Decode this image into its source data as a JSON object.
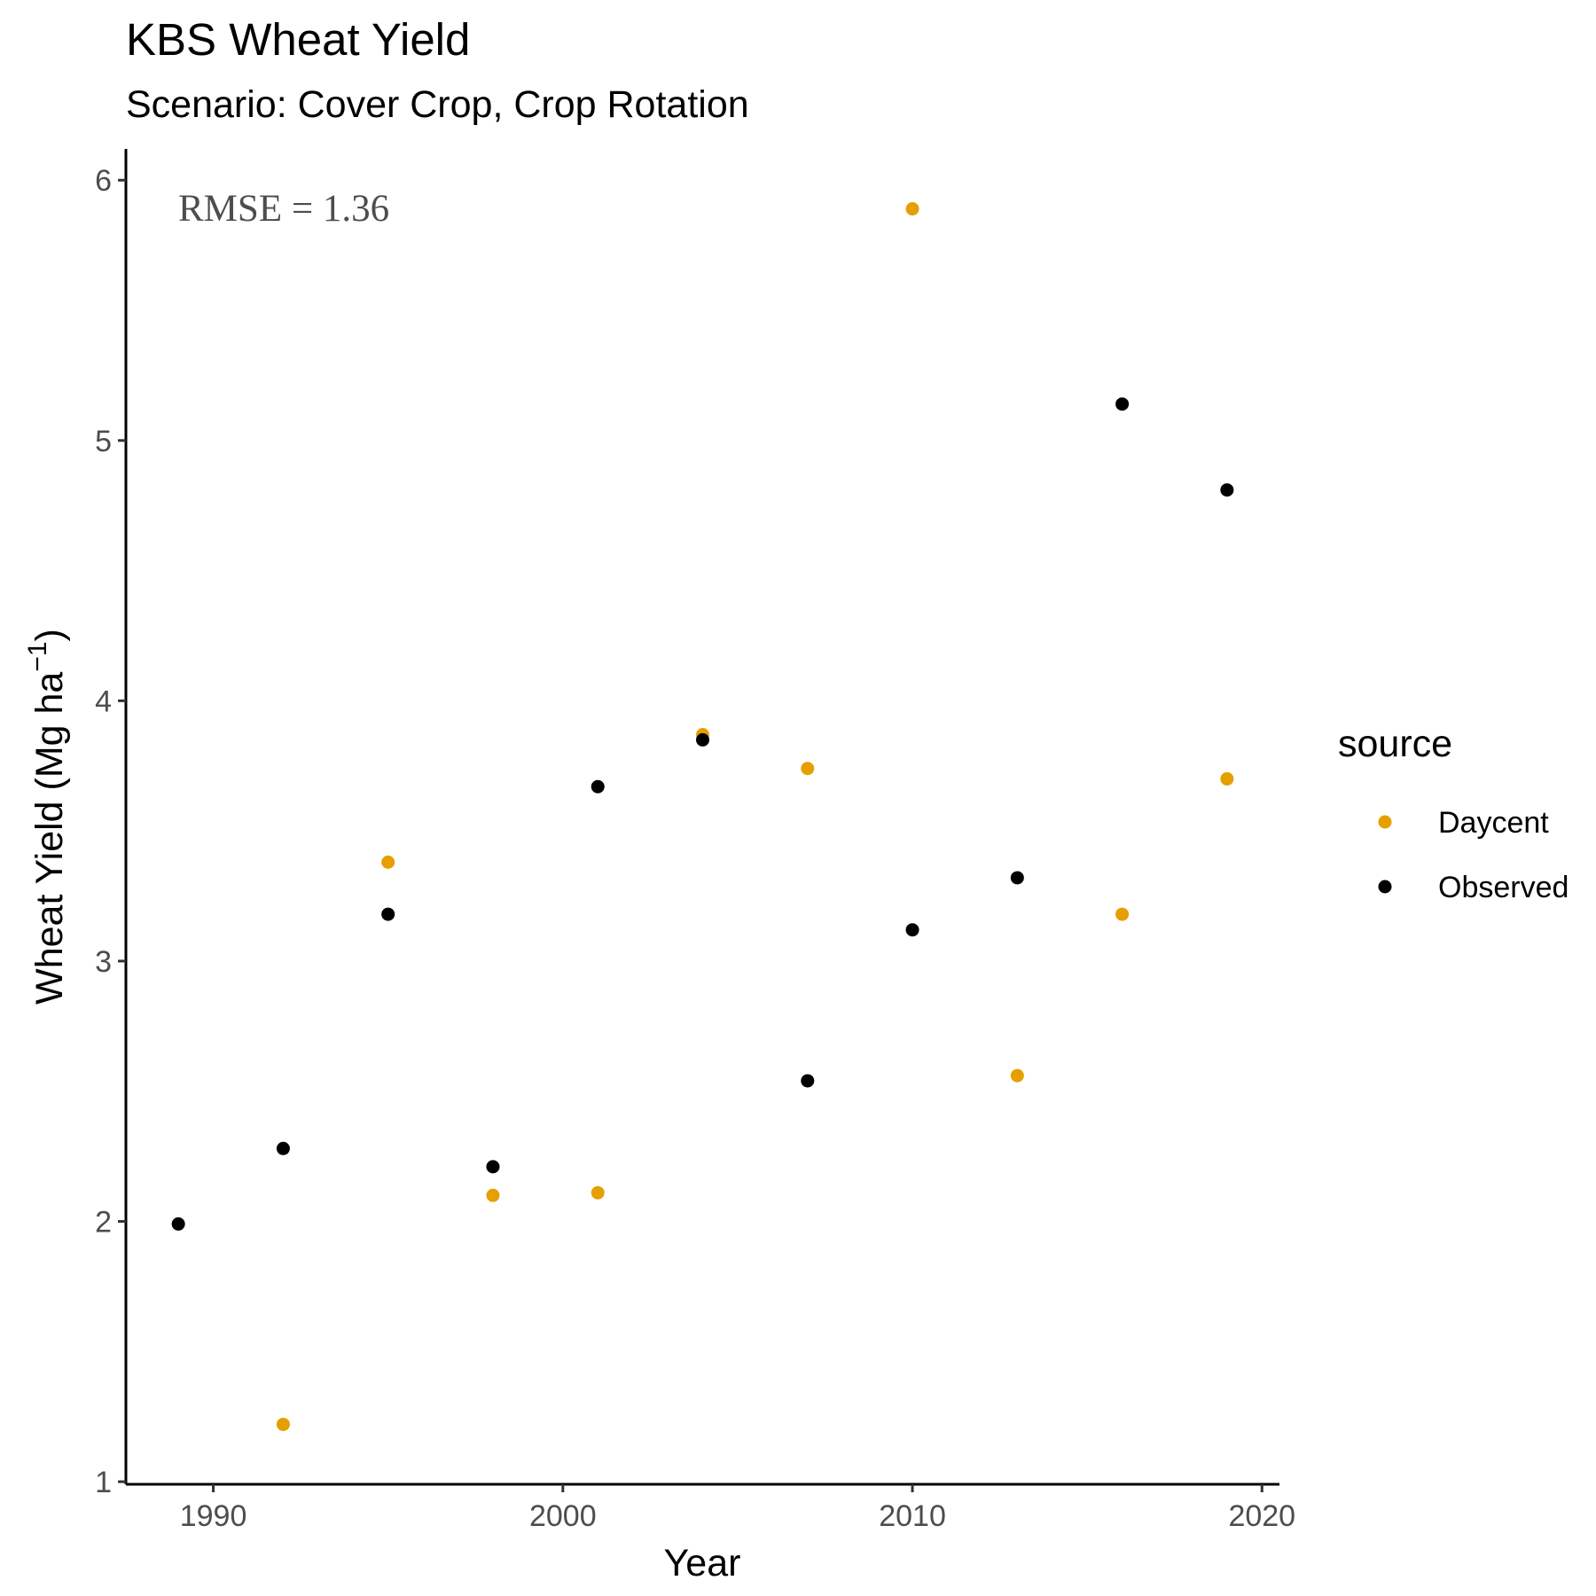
{
  "chart_data": {
    "type": "scatter",
    "title": "KBS Wheat Yield",
    "subtitle": "Scenario: Cover Crop, Crop Rotation",
    "xlabel": "Year",
    "ylabel_main": "Wheat Yield (Mg ha",
    "ylabel_sup": "−1",
    "ylabel_close": ")",
    "xlim": [
      1987.5,
      2020.5
    ],
    "ylim": [
      0.99,
      6.12
    ],
    "x_ticks": [
      1990,
      2000,
      2010,
      2020
    ],
    "y_ticks": [
      1,
      2,
      3,
      4,
      5,
      6
    ],
    "grid": false,
    "legend": {
      "title": "source",
      "position": "right"
    },
    "annotation": "RMSE = 1.36",
    "series": [
      {
        "name": "Daycent",
        "color": "#E69F00",
        "points": [
          {
            "x": 1992,
            "y": 1.22
          },
          {
            "x": 1995,
            "y": 3.38
          },
          {
            "x": 1998,
            "y": 2.1
          },
          {
            "x": 2001,
            "y": 2.11
          },
          {
            "x": 2004,
            "y": 3.87
          },
          {
            "x": 2007,
            "y": 3.74
          },
          {
            "x": 2010,
            "y": 5.89
          },
          {
            "x": 2013,
            "y": 2.56
          },
          {
            "x": 2016,
            "y": 3.18
          },
          {
            "x": 2019,
            "y": 3.7
          }
        ]
      },
      {
        "name": "Observed",
        "color": "#000000",
        "points": [
          {
            "x": 1989,
            "y": 1.99
          },
          {
            "x": 1992,
            "y": 2.28
          },
          {
            "x": 1995,
            "y": 3.18
          },
          {
            "x": 1998,
            "y": 2.21
          },
          {
            "x": 2001,
            "y": 3.67
          },
          {
            "x": 2004,
            "y": 3.85
          },
          {
            "x": 2007,
            "y": 2.54
          },
          {
            "x": 2010,
            "y": 3.12
          },
          {
            "x": 2013,
            "y": 3.32
          },
          {
            "x": 2016,
            "y": 5.14
          },
          {
            "x": 2019,
            "y": 4.81
          }
        ]
      }
    ]
  }
}
